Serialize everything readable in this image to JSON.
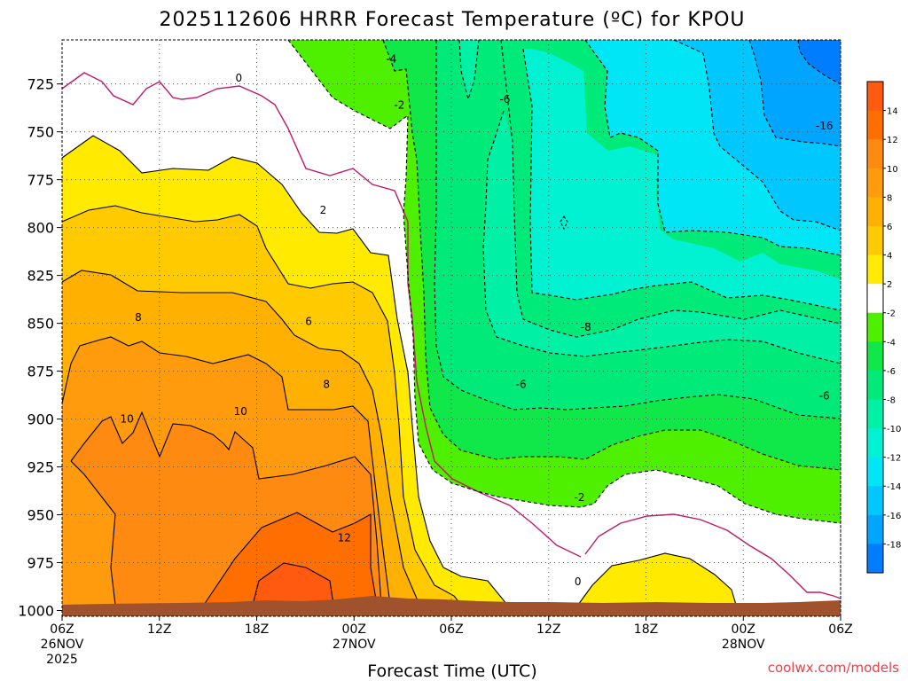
{
  "title": "2025112606 HRRR Forecast Temperature (ºC) for KPOU",
  "credit": "coolwx.com/models",
  "chart_data": {
    "type": "heatmap",
    "title": "2025112606 HRRR Forecast Temperature (ºC) for KPOU",
    "xlabel": "Forecast Time (UTC)",
    "ylabel": "",
    "y_ticks": [
      725,
      750,
      775,
      800,
      825,
      850,
      875,
      900,
      925,
      950,
      975,
      1000
    ],
    "x_ticks": [
      {
        "label": "06Z",
        "sub1": "26NOV",
        "sub2": "2025",
        "hour": 0
      },
      {
        "label": "12Z",
        "sub1": "",
        "sub2": "",
        "hour": 6
      },
      {
        "label": "18Z",
        "sub1": "",
        "sub2": "",
        "hour": 12
      },
      {
        "label": "00Z",
        "sub1": "27NOV",
        "sub2": "",
        "hour": 18
      },
      {
        "label": "06Z",
        "sub1": "",
        "sub2": "",
        "hour": 24
      },
      {
        "label": "12Z",
        "sub1": "",
        "sub2": "",
        "hour": 30
      },
      {
        "label": "18Z",
        "sub1": "",
        "sub2": "",
        "hour": 36
      },
      {
        "label": "00Z",
        "sub1": "28NOV",
        "sub2": "",
        "hour": 42
      },
      {
        "label": "06Z",
        "sub1": "",
        "sub2": "",
        "hour": 48
      }
    ],
    "xlim": [
      0,
      48
    ],
    "ylim": [
      1003,
      702
    ],
    "colorbar": {
      "labels": [
        "14",
        "12",
        "10",
        "8",
        "6",
        "4",
        "2",
        "-2",
        "-4",
        "-6",
        "-8",
        "-10",
        "-12",
        "-14",
        "-16",
        "-18"
      ],
      "bins": [
        {
          "range": "14 to 16",
          "color": "#ff5a10"
        },
        {
          "range": "12 to 14",
          "color": "#ff6e00"
        },
        {
          "range": "10 to 12",
          "color": "#ff8a12"
        },
        {
          "range": "8 to 10",
          "color": "#ff9b0c"
        },
        {
          "range": "6 to 8",
          "color": "#ffb000"
        },
        {
          "range": "4 to 6",
          "color": "#ffcb00"
        },
        {
          "range": "2 to 4",
          "color": "#ffea00"
        },
        {
          "range": "-2 to 2",
          "color": "#ffffff"
        },
        {
          "range": "-4 to -2",
          "color": "#4ef000"
        },
        {
          "range": "-6 to -4",
          "color": "#10e84a"
        },
        {
          "range": "-8 to -6",
          "color": "#00ea7a"
        },
        {
          "range": "-10 to -8",
          "color": "#00f0a6"
        },
        {
          "range": "-12 to -10",
          "color": "#00f2d2"
        },
        {
          "range": "-14 to -12",
          "color": "#00e6f6"
        },
        {
          "range": "-16 to -14",
          "color": "#00c8ff"
        },
        {
          "range": "-18 to -16",
          "color": "#00a5ff"
        },
        {
          "range": "-20 to -18",
          "color": "#007cff"
        }
      ]
    },
    "contour_labels": [
      {
        "text": "0",
        "x": 10.9,
        "y": 722
      },
      {
        "text": "-4",
        "x": 20.3,
        "y": 712
      },
      {
        "text": "-2",
        "x": 20.8,
        "y": 736
      },
      {
        "text": "-6",
        "x": 27.3,
        "y": 733
      },
      {
        "text": "-16",
        "x": 47.0,
        "y": 747
      },
      {
        "text": "2",
        "x": 16.1,
        "y": 791
      },
      {
        "text": "8",
        "x": 4.7,
        "y": 847
      },
      {
        "text": "6",
        "x": 15.2,
        "y": 849
      },
      {
        "text": "-8",
        "x": 32.3,
        "y": 852
      },
      {
        "text": "8",
        "x": 16.3,
        "y": 882
      },
      {
        "text": "-6",
        "x": 28.3,
        "y": 882
      },
      {
        "text": "-6",
        "x": 47.0,
        "y": 888
      },
      {
        "text": "10",
        "x": 4.0,
        "y": 900
      },
      {
        "text": "10",
        "x": 11.0,
        "y": 896
      },
      {
        "text": "-2",
        "x": 31.9,
        "y": 941
      },
      {
        "text": "12",
        "x": 17.4,
        "y": 962
      },
      {
        "text": "0",
        "x": 31.8,
        "y": 985
      }
    ]
  }
}
